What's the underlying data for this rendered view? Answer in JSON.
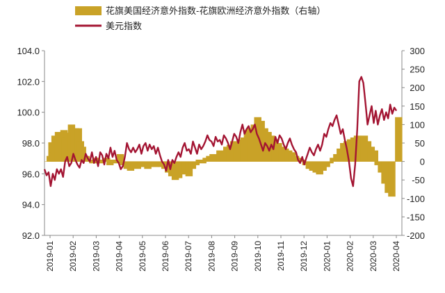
{
  "chart_data": {
    "type": "bar+line",
    "legend": [
      {
        "name": "花旗美国经济意外指数-花旗欧洲经济意外指数（右轴）",
        "type": "bar",
        "color": "#c9a227"
      },
      {
        "name": "美元指数",
        "type": "line",
        "color": "#a31432"
      }
    ],
    "y_left": {
      "min": 92.0,
      "max": 104.0,
      "ticks": [
        "92.0",
        "94.0",
        "96.0",
        "98.0",
        "100.0",
        "102.0",
        "104.0"
      ]
    },
    "y_right": {
      "min": -200,
      "max": 300,
      "ticks": [
        "-200",
        "-150",
        "-100",
        "-50",
        "0",
        "50",
        "100",
        "150",
        "200",
        "250",
        "300"
      ]
    },
    "x_ticks": [
      "2019-01",
      "2019-02",
      "2019-03",
      "2019-04",
      "2019-05",
      "2019-06",
      "2019-07",
      "2019-08",
      "2019-09",
      "2019-10",
      "2019-11",
      "2019-12",
      "2020-01",
      "2020-02",
      "2020-03",
      "2020-04"
    ],
    "series": [
      {
        "name": "花旗美国经济意外指数-花旗欧洲经济意外指数（右轴）",
        "axis": "right",
        "color": "#c9a227",
        "points": [
          [
            0,
            0
          ],
          [
            0.3,
            15
          ],
          [
            0.55,
            52
          ],
          [
            0.75,
            25
          ],
          [
            1.0,
            70
          ],
          [
            1.5,
            80
          ],
          [
            2.0,
            75
          ],
          [
            2.3,
            85
          ],
          [
            2.5,
            65
          ],
          [
            3.0,
            78
          ],
          [
            3.4,
            100
          ],
          [
            3.8,
            80
          ],
          [
            4.0,
            90
          ],
          [
            4.4,
            90
          ],
          [
            4.7,
            55
          ],
          [
            5.0,
            40
          ],
          [
            5.5,
            15
          ],
          [
            6.0,
            5
          ],
          [
            6.5,
            -5
          ],
          [
            7.0,
            10
          ],
          [
            7.5,
            -5
          ],
          [
            8.0,
            5
          ],
          [
            8.5,
            10
          ],
          [
            9.0,
            -10
          ],
          [
            9.5,
            5
          ],
          [
            10.0,
            -5
          ],
          [
            10.5,
            20
          ],
          [
            11.0,
            -10
          ],
          [
            11.5,
            -20
          ],
          [
            12.0,
            -25
          ],
          [
            12.5,
            -15
          ],
          [
            13.0,
            -20
          ],
          [
            13.5,
            -10
          ],
          [
            14.0,
            -15
          ],
          [
            14.5,
            -20
          ],
          [
            15.0,
            -10
          ],
          [
            15.5,
            -15
          ],
          [
            16.0,
            -10
          ],
          [
            16.5,
            -15
          ],
          [
            17.0,
            -20
          ],
          [
            17.5,
            -30
          ],
          [
            18.0,
            -40
          ],
          [
            18.5,
            -50
          ],
          [
            19.0,
            -45
          ],
          [
            19.5,
            -35
          ],
          [
            20.0,
            -25
          ],
          [
            20.5,
            -40
          ],
          [
            21.0,
            -20
          ],
          [
            21.5,
            -10
          ],
          [
            22.0,
            5
          ],
          [
            22.5,
            -5
          ],
          [
            23.0,
            10
          ],
          [
            23.5,
            15
          ],
          [
            24.0,
            20
          ],
          [
            24.5,
            15
          ],
          [
            25.0,
            30
          ],
          [
            25.5,
            25
          ],
          [
            26.0,
            40
          ],
          [
            26.5,
            45
          ],
          [
            27.0,
            55
          ],
          [
            27.5,
            40
          ],
          [
            28.0,
            60
          ],
          [
            28.5,
            65
          ],
          [
            29.0,
            85
          ],
          [
            29.5,
            90
          ],
          [
            30.0,
            100
          ],
          [
            30.5,
            120
          ],
          [
            31.0,
            110
          ],
          [
            31.5,
            90
          ],
          [
            32.0,
            80
          ],
          [
            32.5,
            70
          ],
          [
            33.0,
            60
          ],
          [
            33.5,
            50
          ],
          [
            34.0,
            40
          ],
          [
            34.5,
            35
          ],
          [
            35.0,
            30
          ],
          [
            35.5,
            25
          ],
          [
            36.0,
            15
          ],
          [
            36.5,
            10
          ],
          [
            37.0,
            5
          ],
          [
            37.5,
            -10
          ],
          [
            38.0,
            -20
          ],
          [
            38.5,
            -25
          ],
          [
            39.0,
            -30
          ],
          [
            39.5,
            -35
          ],
          [
            40.0,
            -25
          ],
          [
            40.5,
            -15
          ],
          [
            41.0,
            -5
          ],
          [
            41.5,
            10
          ],
          [
            42.0,
            20
          ],
          [
            42.5,
            35
          ],
          [
            43.0,
            50
          ],
          [
            43.5,
            55
          ],
          [
            44.0,
            60
          ],
          [
            44.5,
            65
          ],
          [
            45.0,
            70
          ],
          [
            45.5,
            60
          ],
          [
            46.0,
            70
          ],
          [
            46.5,
            55
          ],
          [
            47.0,
            40
          ],
          [
            47.5,
            30
          ],
          [
            48.0,
            -10
          ],
          [
            48.5,
            -30
          ],
          [
            49.0,
            -60
          ],
          [
            49.5,
            -85
          ],
          [
            50.0,
            -95
          ],
          [
            50.5,
            0
          ],
          [
            51.0,
            120
          ],
          [
            51.3,
            0
          ]
        ]
      },
      {
        "name": "美元指数",
        "axis": "left",
        "color": "#a31432",
        "points": [
          [
            0,
            96.3
          ],
          [
            0.3,
            95.9
          ],
          [
            0.6,
            96.1
          ],
          [
            0.9,
            95.2
          ],
          [
            1.2,
            96.0
          ],
          [
            1.5,
            95.6
          ],
          [
            1.8,
            96.3
          ],
          [
            2.1,
            96.0
          ],
          [
            2.4,
            96.3
          ],
          [
            2.7,
            95.8
          ],
          [
            3.0,
            96.8
          ],
          [
            3.3,
            97.1
          ],
          [
            3.6,
            96.5
          ],
          [
            3.9,
            96.7
          ],
          [
            4.2,
            97.3
          ],
          [
            4.5,
            96.9
          ],
          [
            4.8,
            96.6
          ],
          [
            5.1,
            96.4
          ],
          [
            5.4,
            96.9
          ],
          [
            5.7,
            96.7
          ],
          [
            6.0,
            97.3
          ],
          [
            6.3,
            97.0
          ],
          [
            6.6,
            96.8
          ],
          [
            6.9,
            97.4
          ],
          [
            7.2,
            96.7
          ],
          [
            7.5,
            97.1
          ],
          [
            7.8,
            96.5
          ],
          [
            8.1,
            97.4
          ],
          [
            8.4,
            97.2
          ],
          [
            8.7,
            96.6
          ],
          [
            9.0,
            97.3
          ],
          [
            9.3,
            97.0
          ],
          [
            9.6,
            97.7
          ],
          [
            9.9,
            97.1
          ],
          [
            10.2,
            97.5
          ],
          [
            10.5,
            96.9
          ],
          [
            10.8,
            96.7
          ],
          [
            11.1,
            96.3
          ],
          [
            11.4,
            96.5
          ],
          [
            11.7,
            97.1
          ],
          [
            12.0,
            98.0
          ],
          [
            12.3,
            97.6
          ],
          [
            12.6,
            97.4
          ],
          [
            12.9,
            97.7
          ],
          [
            13.2,
            97.4
          ],
          [
            13.5,
            97.6
          ],
          [
            13.8,
            97.9
          ],
          [
            14.1,
            97.3
          ],
          [
            14.4,
            97.8
          ],
          [
            14.7,
            98.0
          ],
          [
            15.0,
            97.5
          ],
          [
            15.3,
            97.9
          ],
          [
            15.6,
            97.6
          ],
          [
            15.9,
            97.8
          ],
          [
            16.2,
            97.3
          ],
          [
            16.5,
            97.7
          ],
          [
            16.8,
            97.2
          ],
          [
            17.1,
            96.8
          ],
          [
            17.4,
            96.6
          ],
          [
            17.7,
            96.2
          ],
          [
            18.0,
            96.9
          ],
          [
            18.3,
            96.3
          ],
          [
            18.6,
            96.9
          ],
          [
            18.9,
            96.7
          ],
          [
            19.2,
            97.1
          ],
          [
            19.5,
            97.4
          ],
          [
            19.8,
            97.1
          ],
          [
            20.1,
            97.7
          ],
          [
            20.4,
            98.0
          ],
          [
            20.7,
            97.5
          ],
          [
            21.0,
            97.6
          ],
          [
            21.3,
            97.3
          ],
          [
            21.6,
            98.1
          ],
          [
            21.9,
            97.7
          ],
          [
            22.2,
            97.3
          ],
          [
            22.5,
            97.9
          ],
          [
            22.8,
            97.6
          ],
          [
            23.1,
            97.8
          ],
          [
            23.4,
            98.1
          ],
          [
            23.7,
            98.5
          ],
          [
            24.0,
            98.2
          ],
          [
            24.3,
            98.1
          ],
          [
            24.6,
            97.8
          ],
          [
            24.9,
            98.4
          ],
          [
            25.2,
            98.1
          ],
          [
            25.5,
            98.2
          ],
          [
            25.8,
            97.9
          ],
          [
            26.1,
            98.5
          ],
          [
            26.4,
            98.3
          ],
          [
            26.7,
            98.0
          ],
          [
            27.0,
            97.6
          ],
          [
            27.3,
            98.1
          ],
          [
            27.6,
            98.6
          ],
          [
            27.9,
            98.4
          ],
          [
            28.2,
            98.0
          ],
          [
            28.5,
            98.7
          ],
          [
            28.8,
            99.2
          ],
          [
            29.1,
            98.6
          ],
          [
            29.4,
            98.9
          ],
          [
            29.7,
            99.1
          ],
          [
            30.0,
            98.7
          ],
          [
            30.3,
            98.9
          ],
          [
            30.6,
            99.2
          ],
          [
            30.9,
            98.6
          ],
          [
            31.2,
            98.3
          ],
          [
            31.5,
            97.9
          ],
          [
            31.8,
            97.5
          ],
          [
            32.1,
            98.0
          ],
          [
            32.4,
            97.8
          ],
          [
            32.7,
            97.5
          ],
          [
            33.0,
            97.9
          ],
          [
            33.3,
            97.6
          ],
          [
            33.6,
            98.4
          ],
          [
            33.9,
            98.0
          ],
          [
            34.2,
            98.5
          ],
          [
            34.5,
            98.3
          ],
          [
            34.8,
            97.9
          ],
          [
            35.1,
            97.6
          ],
          [
            35.4,
            98.0
          ],
          [
            35.7,
            98.3
          ],
          [
            36.0,
            97.9
          ],
          [
            36.3,
            97.6
          ],
          [
            36.6,
            97.4
          ],
          [
            36.9,
            96.9
          ],
          [
            37.2,
            96.7
          ],
          [
            37.5,
            97.1
          ],
          [
            37.8,
            96.6
          ],
          [
            38.0,
            96.9
          ],
          [
            38.3,
            97.3
          ],
          [
            38.6,
            97.7
          ],
          [
            38.9,
            97.4
          ],
          [
            39.2,
            97.2
          ],
          [
            39.5,
            97.6
          ],
          [
            39.8,
            97.9
          ],
          [
            40.1,
            97.5
          ],
          [
            40.4,
            97.9
          ],
          [
            40.7,
            98.6
          ],
          [
            41.0,
            98.4
          ],
          [
            41.3,
            98.9
          ],
          [
            41.6,
            99.3
          ],
          [
            41.9,
            99.1
          ],
          [
            42.2,
            99.5
          ],
          [
            42.5,
            99.8
          ],
          [
            42.8,
            99.2
          ],
          [
            43.1,
            98.6
          ],
          [
            43.4,
            98.9
          ],
          [
            43.7,
            98.2
          ],
          [
            44.0,
            97.6
          ],
          [
            44.3,
            96.8
          ],
          [
            44.6,
            95.7
          ],
          [
            44.9,
            95.2
          ],
          [
            45.2,
            96.6
          ],
          [
            45.5,
            98.9
          ],
          [
            45.8,
            102.0
          ],
          [
            46.1,
            102.3
          ],
          [
            46.4,
            101.9
          ],
          [
            46.7,
            100.6
          ],
          [
            47.0,
            99.2
          ],
          [
            47.3,
            99.8
          ],
          [
            47.6,
            100.4
          ],
          [
            47.9,
            99.3
          ],
          [
            48.2,
            100.1
          ],
          [
            48.5,
            99.2
          ],
          [
            48.8,
            99.8
          ],
          [
            49.1,
            100.2
          ],
          [
            49.4,
            99.5
          ],
          [
            49.7,
            100.0
          ],
          [
            50.0,
            99.6
          ],
          [
            50.3,
            100.5
          ],
          [
            50.6,
            99.9
          ],
          [
            50.9,
            100.3
          ],
          [
            51.2,
            100.1
          ]
        ]
      }
    ]
  }
}
